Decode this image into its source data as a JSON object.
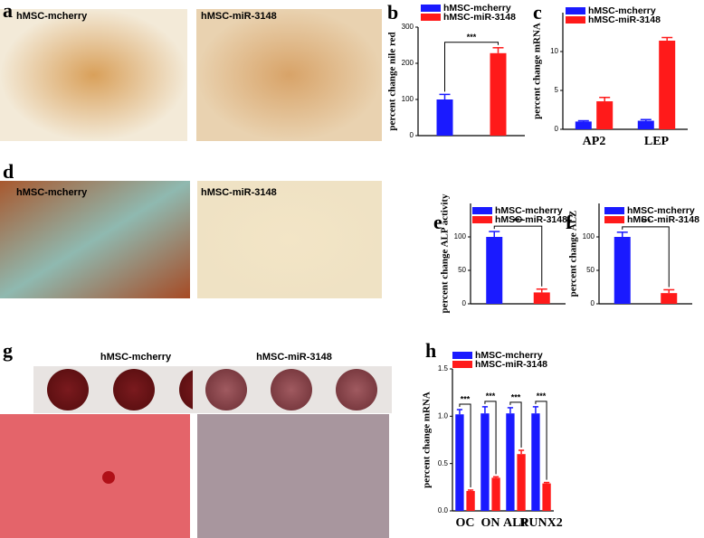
{
  "panel_labels": [
    "a",
    "b",
    "c",
    "d",
    "e",
    "f",
    "g",
    "h"
  ],
  "image_labels": [
    "hMSC-mcherry",
    "hMSC-miR-3148",
    "hMSC-mcherry",
    "hMSC-miR-3148",
    "hMSC-mcherry",
    "hMSC-miR-3148"
  ],
  "chart_data": [
    {
      "type": "bar",
      "ylabel": "percent change nile red",
      "categories": [
        null
      ],
      "series": [
        {
          "name": "hMSC-mcherry",
          "color": "#1a1aff",
          "values": [
            100
          ],
          "errors": [
            14
          ]
        },
        {
          "name": "hMSC-miR-3148",
          "color": "#ff1a1a",
          "values": [
            228
          ],
          "errors": [
            15
          ]
        }
      ],
      "ylim": [
        0,
        300
      ],
      "yticks": [
        0,
        100,
        200,
        300
      ],
      "annotations": [
        "***"
      ]
    },
    {
      "type": "bar",
      "ylabel": "percent change mRNA",
      "categories": [
        "AP2",
        "LEP"
      ],
      "series": [
        {
          "name": "hMSC-mcherry",
          "color": "#1a1aff",
          "values": [
            1,
            1.1
          ],
          "errors": [
            0.1,
            0.15
          ]
        },
        {
          "name": "hMSC-miR-3148",
          "color": "#ff1a1a",
          "values": [
            3.6,
            11.4
          ],
          "errors": [
            0.5,
            0.4
          ]
        }
      ],
      "ylim": [
        0,
        15
      ],
      "yticks": [
        0,
        5,
        10
      ]
    },
    {
      "type": "bar",
      "ylabel": "percent change ALP activity",
      "categories": [
        null
      ],
      "series": [
        {
          "name": "hMSC-mcherry",
          "color": "#1a1aff",
          "values": [
            100
          ],
          "errors": [
            8
          ]
        },
        {
          "name": "hMSC-miR-3148",
          "color": "#ff1a1a",
          "values": [
            17
          ],
          "errors": [
            5
          ]
        }
      ],
      "ylim": [
        0,
        150
      ],
      "yticks": [
        0,
        50,
        100
      ],
      "annotations": [
        "***"
      ]
    },
    {
      "type": "bar",
      "ylabel": "percent change ALZ",
      "categories": [
        null
      ],
      "series": [
        {
          "name": "hMSC-mcherry",
          "color": "#1a1aff",
          "values": [
            100
          ],
          "errors": [
            7
          ]
        },
        {
          "name": "hMSC-miR-3148",
          "color": "#ff1a1a",
          "values": [
            16
          ],
          "errors": [
            5
          ]
        }
      ],
      "ylim": [
        0,
        150
      ],
      "yticks": [
        0,
        50,
        100
      ],
      "annotations": [
        "***"
      ]
    },
    {
      "type": "bar",
      "ylabel": "percent change mRNA",
      "categories": [
        "OC",
        "ON",
        "ALP",
        "RUNX2"
      ],
      "series": [
        {
          "name": "hMSC-mcherry",
          "color": "#1a1aff",
          "values": [
            1.02,
            1.03,
            1.03,
            1.03
          ],
          "errors": [
            0.05,
            0.07,
            0.06,
            0.07
          ]
        },
        {
          "name": "hMSC-miR-3148",
          "color": "#ff1a1a",
          "values": [
            0.21,
            0.35,
            0.6,
            0.29
          ],
          "errors": [
            0.01,
            0.01,
            0.04,
            0.01
          ]
        }
      ],
      "ylim": [
        0,
        1.5
      ],
      "yticks": [
        {
          "value": 0,
          "label": "0.0"
        },
        {
          "value": 0.5,
          "label": "0.5"
        },
        {
          "value": 1,
          "label": "1.0"
        },
        {
          "value": 1.5,
          "label": "1.5"
        }
      ],
      "annotations": [
        "***",
        "***",
        "***",
        "***"
      ]
    }
  ]
}
